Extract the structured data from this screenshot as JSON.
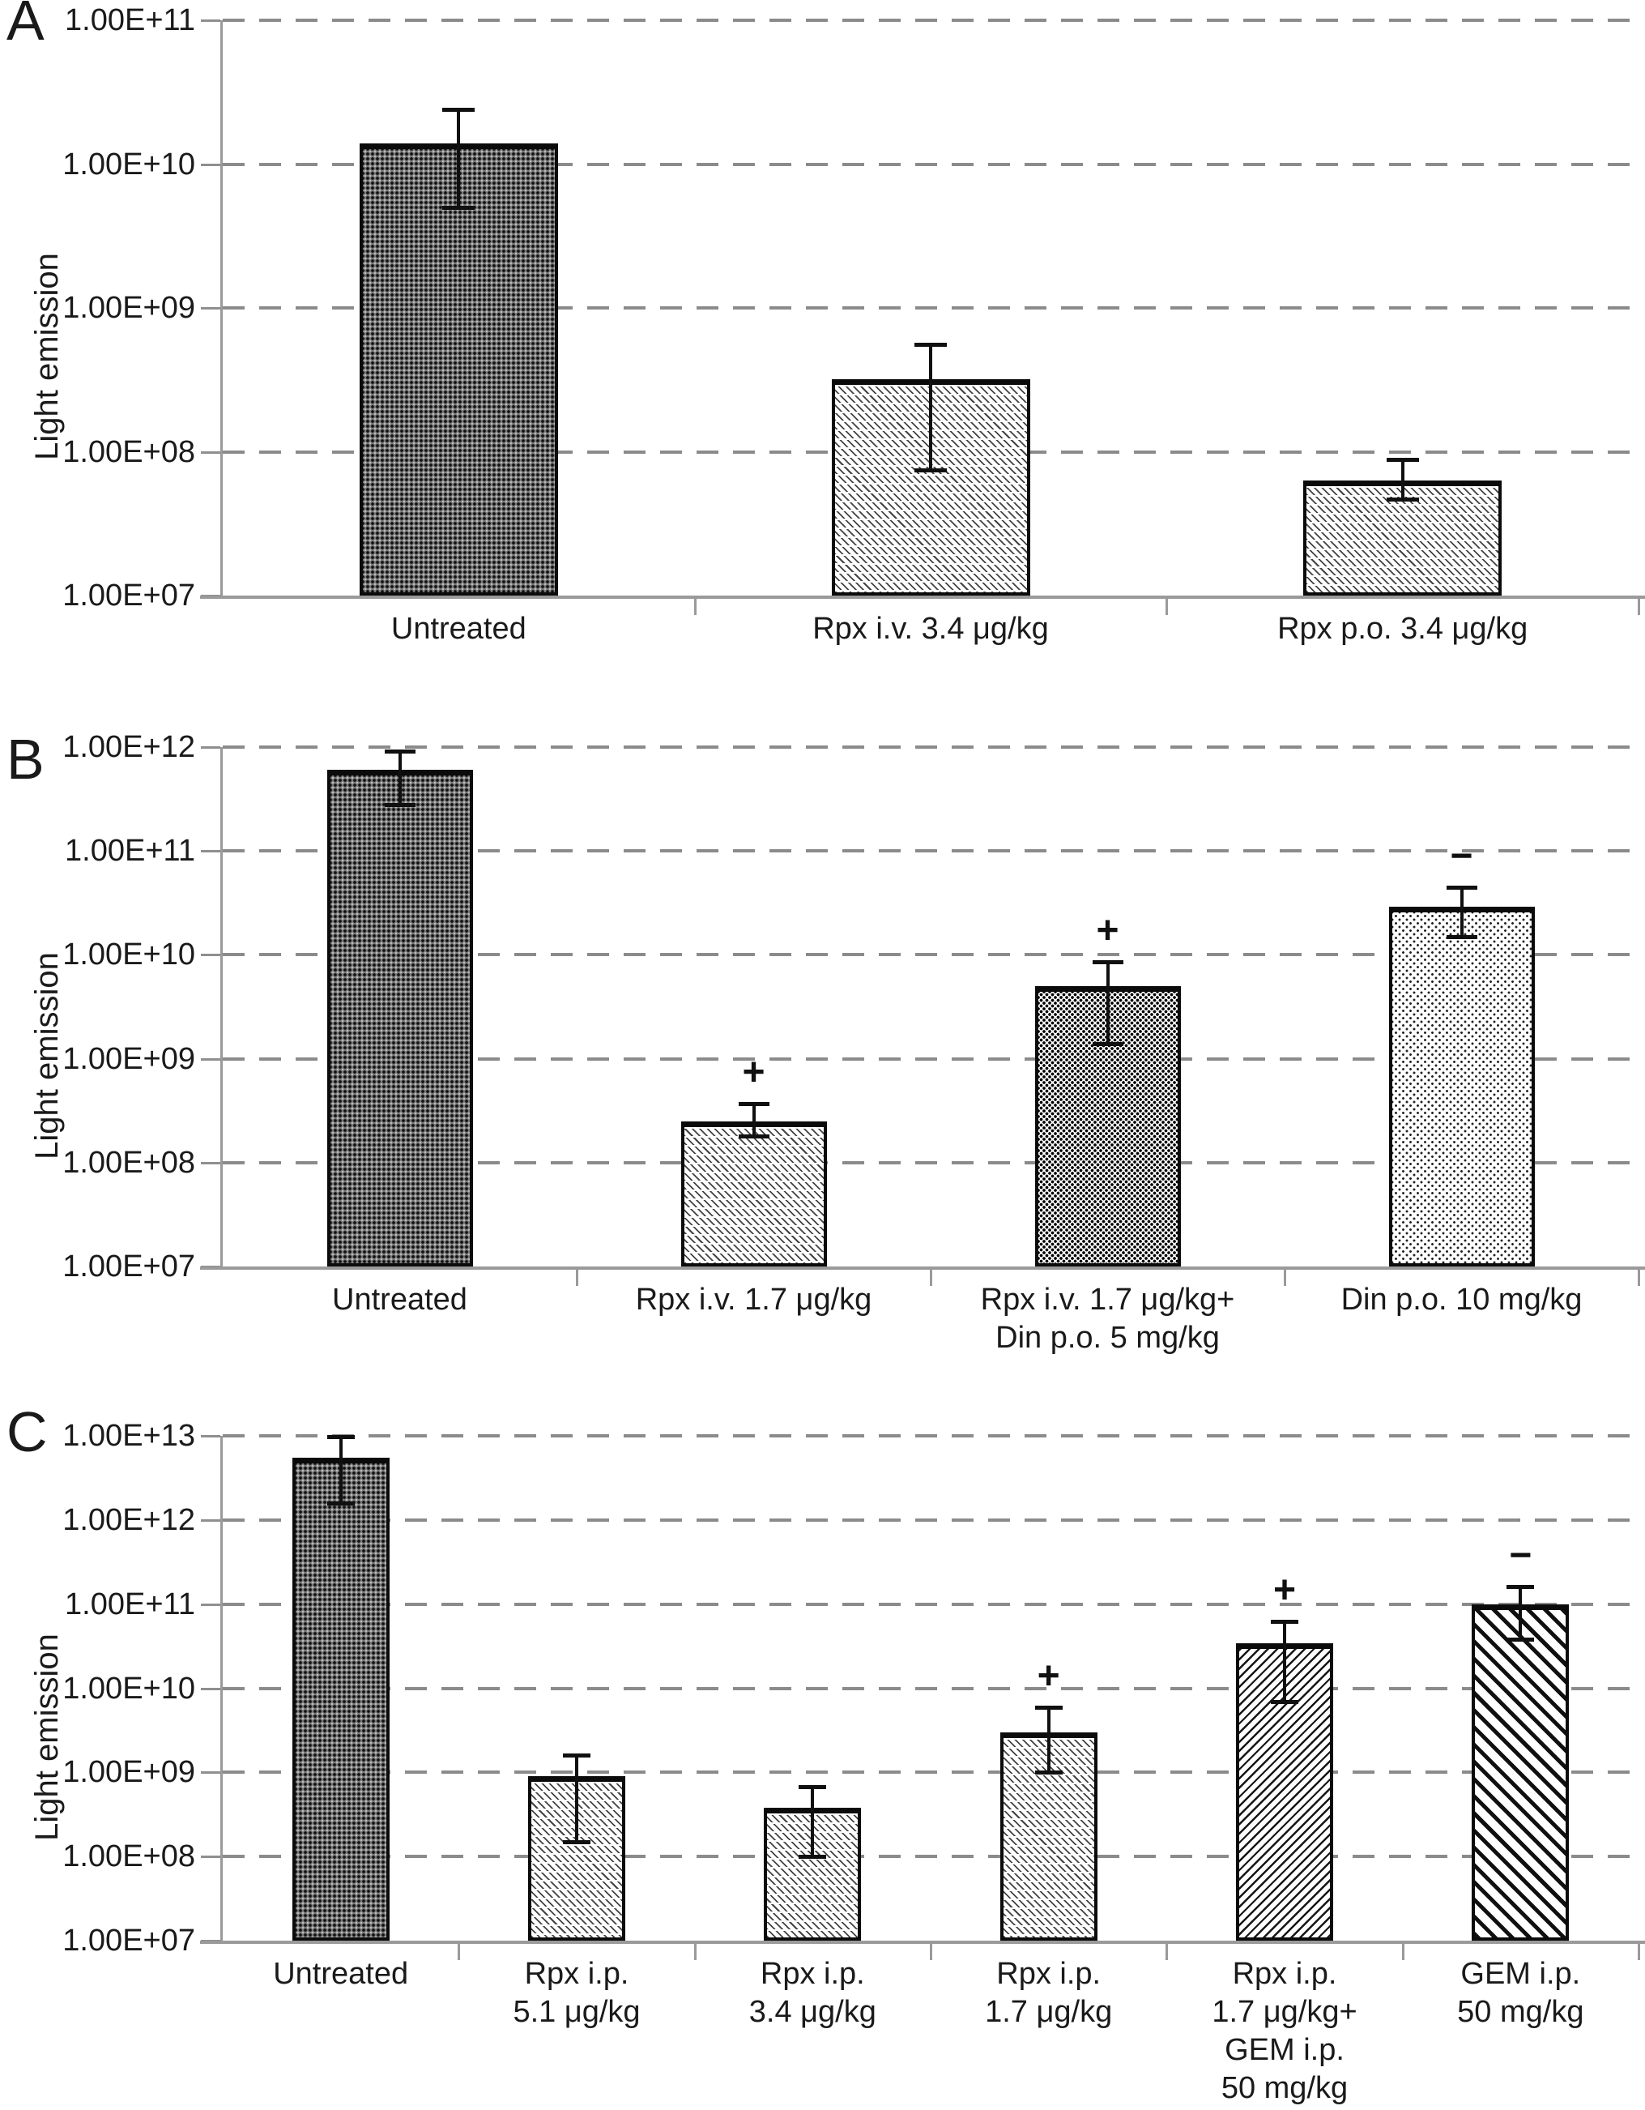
{
  "figure_title": "",
  "chart_data": [
    {
      "type": "bar",
      "panel": "A",
      "ylabel": "Light emission",
      "yscale": "log",
      "ylim": [
        10000000.0,
        100000000000.0
      ],
      "ytick_labels": [
        "1.00E+11",
        "1.00E+10",
        "1.00E+09",
        "1.00E+08",
        "1.00E+07"
      ],
      "grid": "dashed-horizontal",
      "legend": "none",
      "categories": [
        "Untreated",
        "Rpx i.v. 3.4 μg/kg",
        "Rpx p.o. 3.4 μg/kg"
      ],
      "category_lines": [
        [
          "Untreated"
        ],
        [
          "Rpx i.v. 3.4 μg/kg"
        ],
        [
          "Rpx p.o. 3.4 μg/kg"
        ]
      ],
      "values": [
        14000000000.0,
        320000000.0,
        63000000.0
      ],
      "err_hi": [
        24000000000.0,
        560000000.0,
        88000000.0
      ],
      "err_lo": [
        5000000000.0,
        75000000.0,
        47000000.0
      ],
      "patterns": [
        "dark-weave",
        "light-hatch",
        "light-hatch"
      ],
      "annotations": [
        "",
        "",
        ""
      ]
    },
    {
      "type": "bar",
      "panel": "B",
      "ylabel": "Light emission",
      "yscale": "log",
      "ylim": [
        10000000.0,
        1000000000000.0
      ],
      "ytick_labels": [
        "1.00E+12",
        "1.00E+11",
        "1.00E+10",
        "1.00E+09",
        "1.00E+08",
        "1.00E+07"
      ],
      "grid": "dashed-horizontal",
      "legend": "none",
      "categories": [
        "Untreated",
        "Rpx i.v. 1.7 μg/kg",
        "Rpx i.v. 1.7 μg/kg+ Din p.o. 5 mg/kg",
        "Din p.o. 10 mg/kg"
      ],
      "category_lines": [
        [
          "Untreated"
        ],
        [
          "Rpx i.v. 1.7 μg/kg"
        ],
        [
          "Rpx i.v. 1.7 μg/kg+",
          "Din p.o. 5 mg/kg"
        ],
        [
          "Din p.o. 10 mg/kg"
        ]
      ],
      "values": [
        600000000000.0,
        250000000.0,
        5000000000.0,
        29000000000.0
      ],
      "err_hi": [
        920000000000.0,
        370000000.0,
        8500000000.0,
        45000000000.0
      ],
      "err_lo": [
        280000000000.0,
        180000000.0,
        1400000000.0,
        15000000000.0
      ],
      "patterns": [
        "dark-weave",
        "light-hatch",
        "dense-dots",
        "light-dots"
      ],
      "annotations": [
        "",
        "+",
        "+",
        "−"
      ]
    },
    {
      "type": "bar",
      "panel": "C",
      "ylabel": "Light emission",
      "yscale": "log",
      "ylim": [
        10000000.0,
        10000000000000.0
      ],
      "ytick_labels": [
        "1.00E+13",
        "1.00E+12",
        "1.00E+11",
        "1.00E+10",
        "1.00E+09",
        "1.00E+08",
        "1.00E+07"
      ],
      "grid": "dashed-horizontal",
      "legend": "none",
      "categories": [
        "Untreated",
        "Rpx i.p. 5.1 μg/kg",
        "Rpx i.p. 3.4 μg/kg",
        "Rpx i.p. 1.7 μg/kg",
        "Rpx i.p. 1.7 μg/kg+ GEM i.p. 50 mg/kg",
        "GEM i.p. 50 mg/kg"
      ],
      "category_lines": [
        [
          "Untreated"
        ],
        [
          "Rpx i.p.",
          "5.1 μg/kg"
        ],
        [
          "Rpx i.p.",
          "3.4 μg/kg"
        ],
        [
          "Rpx i.p.",
          "1.7 μg/kg"
        ],
        [
          "Rpx i.p.",
          "1.7 μg/kg+",
          "GEM i.p.",
          "50 mg/kg"
        ],
        [
          "GEM i.p.",
          "50 mg/kg"
        ]
      ],
      "values": [
        5500000000000.0,
        900000000.0,
        380000000.0,
        3000000000.0,
        34000000000.0,
        100000000000.0
      ],
      "err_hi": [
        9800000000000.0,
        1600000000.0,
        680000000.0,
        6000000000.0,
        63000000000.0,
        160000000000.0
      ],
      "err_lo": [
        1600000000000.0,
        150000000.0,
        100000000.0,
        1000000000.0,
        7000000000.0,
        38000000000.0
      ],
      "patterns": [
        "dark-weave",
        "light-hatch",
        "light-hatch",
        "light-hatch",
        "fwd-hatch",
        "bold-stripes"
      ],
      "annotations": [
        "",
        "",
        "",
        "+",
        "+",
        "−"
      ]
    }
  ],
  "colors": {
    "background": "#ffffff",
    "axis": "#9a9a9a",
    "gridline": "#8b8b8b",
    "bar_outline": "#0b0b0b",
    "text": "#1a1a1a"
  }
}
